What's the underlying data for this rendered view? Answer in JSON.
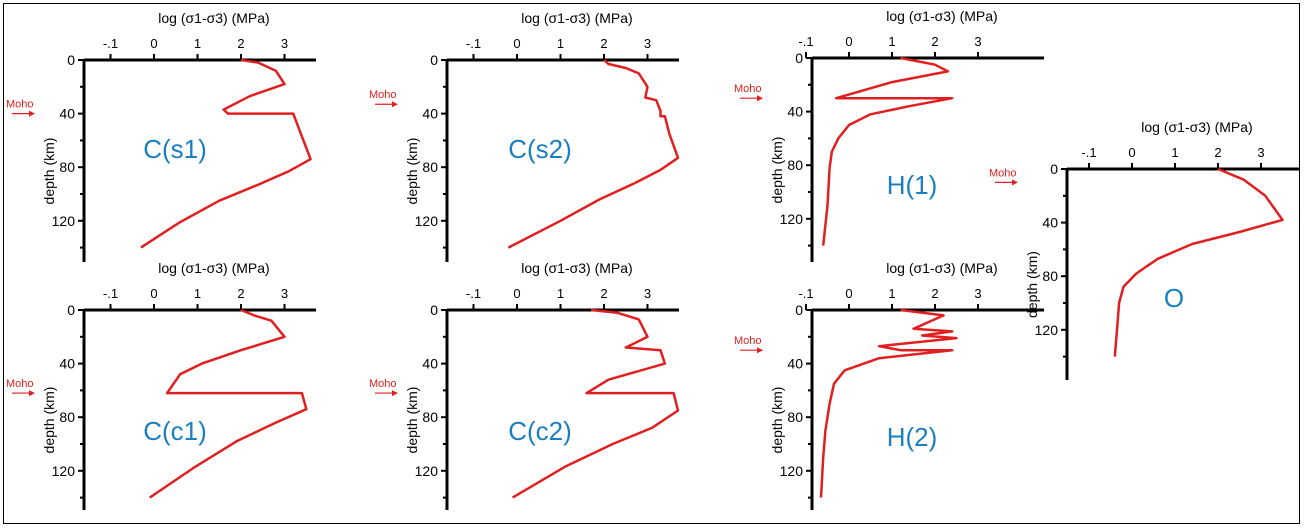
{
  "colors": {
    "curve": "#e02020",
    "moho_text": "#e02020",
    "panel_label": "#1a7fc0",
    "axis": "#000000"
  },
  "chart_data": [
    {
      "type": "line",
      "panel_label": "C(s1)",
      "xlabel": "log (σ1-σ3) (MPa)",
      "ylabel": "depth (km)",
      "moho_label": "Moho",
      "moho_depth": 40,
      "xticks": [
        "-.1",
        "0",
        "1",
        "2",
        "3"
      ],
      "yticks": [
        "0",
        "40",
        "80",
        "120"
      ],
      "ylim": [
        0,
        145
      ],
      "series": [
        {
          "x": [
            2.0,
            2.4,
            2.8,
            3.0,
            2.2,
            1.6,
            1.7,
            3.2,
            3.6,
            3.1,
            2.4,
            1.5,
            0.6,
            -0.3
          ],
          "y": [
            0,
            2,
            8,
            18,
            27,
            37,
            40,
            40,
            74,
            83,
            93,
            105,
            121,
            140
          ]
        }
      ]
    },
    {
      "type": "line",
      "panel_label": "C(s2)",
      "xlabel": "log (σ1-σ3) (MPa)",
      "ylabel": "depth (km)",
      "moho_label": "Moho",
      "moho_depth": 33,
      "xticks": [
        "-.1",
        "0",
        "1",
        "2",
        "3"
      ],
      "yticks": [
        "0",
        "40",
        "80",
        "120"
      ],
      "ylim": [
        0,
        145
      ],
      "series": [
        {
          "x": [
            2.0,
            2.1,
            2.5,
            2.8,
            3.0,
            2.95,
            3.2,
            3.3,
            3.3,
            3.4,
            3.5,
            3.7,
            3.3,
            2.7,
            1.9,
            1.0,
            -0.2
          ],
          "y": [
            0,
            3,
            6,
            10,
            20,
            28,
            30,
            38,
            42,
            42,
            55,
            73,
            82,
            92,
            104,
            120,
            140
          ]
        }
      ]
    },
    {
      "type": "line",
      "panel_label": "H(1)",
      "xlabel": "log (σ1-σ3) (MPa)",
      "ylabel": "depth (km)",
      "moho_label": "Moho",
      "moho_depth": 30,
      "xticks": [
        "-.1",
        "0",
        "1",
        "2",
        "3"
      ],
      "yticks": [
        "0",
        "40",
        "80",
        "120"
      ],
      "ylim": [
        0,
        145
      ],
      "series": [
        {
          "x": [
            1.2,
            2.0,
            2.3,
            1.0,
            -0.3,
            2.4,
            1.4,
            0.5,
            0.0,
            -0.25,
            -0.4,
            -0.45,
            -0.5,
            -0.6
          ],
          "y": [
            0,
            5,
            10,
            18,
            30,
            30,
            36,
            42,
            50,
            60,
            70,
            82,
            110,
            140
          ]
        }
      ]
    },
    {
      "type": "line",
      "panel_label": "O",
      "xlabel": "log (σ1-σ3) (MPa)",
      "ylabel": "depth (km)",
      "moho_label": "Moho",
      "moho_depth": 10,
      "xticks": [
        "-.1",
        "0",
        "1",
        "2",
        "3"
      ],
      "yticks": [
        "0",
        "40",
        "80",
        "120"
      ],
      "ylim": [
        0,
        145
      ],
      "series": [
        {
          "x": [
            2.0,
            2.6,
            3.1,
            3.5,
            2.5,
            1.4,
            0.6,
            0.1,
            -0.2,
            -0.3,
            -0.35,
            -0.4
          ],
          "y": [
            0,
            8,
            20,
            38,
            47,
            56,
            67,
            78,
            88,
            100,
            120,
            140
          ]
        }
      ]
    },
    {
      "type": "line",
      "panel_label": "C(c1)",
      "xlabel": "log (σ1-σ3) (MPa)",
      "ylabel": "depth (km)",
      "moho_label": "Moho",
      "moho_depth": 62,
      "xticks": [
        "-.1",
        "0",
        "1",
        "2",
        "3"
      ],
      "yticks": [
        "0",
        "40",
        "80",
        "120"
      ],
      "ylim": [
        0,
        145
      ],
      "series": [
        {
          "x": [
            2.0,
            2.3,
            2.7,
            3.0,
            2.0,
            1.1,
            0.6,
            0.3,
            3.4,
            3.5,
            2.8,
            1.9,
            0.9,
            -0.1
          ],
          "y": [
            0,
            4,
            8,
            20,
            30,
            40,
            48,
            62,
            62,
            74,
            84,
            98,
            118,
            140
          ]
        }
      ]
    },
    {
      "type": "line",
      "panel_label": "C(c2)",
      "xlabel": "log (σ1-σ3) (MPa)",
      "ylabel": "depth (km)",
      "moho_label": "Moho",
      "moho_depth": 62,
      "xticks": [
        "-.1",
        "0",
        "1",
        "2",
        "3"
      ],
      "yticks": [
        "0",
        "40",
        "80",
        "120"
      ],
      "ylim": [
        0,
        145
      ],
      "series": [
        {
          "x": [
            1.7,
            2.3,
            2.8,
            3.0,
            2.5,
            3.3,
            3.4,
            2.1,
            1.6,
            3.6,
            3.7,
            3.1,
            2.2,
            1.1,
            -0.1
          ],
          "y": [
            0,
            2,
            7,
            20,
            28,
            30,
            40,
            52,
            62,
            62,
            75,
            88,
            100,
            117,
            140
          ]
        }
      ]
    },
    {
      "type": "line",
      "panel_label": "H(2)",
      "xlabel": "log (σ1-σ3) (MPa)",
      "ylabel": "depth (km)",
      "moho_label": "Moho",
      "moho_depth": 30,
      "xticks": [
        "-.1",
        "0",
        "1",
        "2",
        "3"
      ],
      "yticks": [
        "0",
        "40",
        "80",
        "120"
      ],
      "ylim": [
        0,
        145
      ],
      "series": [
        {
          "x": [
            1.2,
            2.2,
            1.5,
            2.4,
            1.7,
            2.5,
            0.7,
            1.2,
            2.4,
            0.7,
            -0.1,
            -0.35,
            -0.45,
            -0.55,
            -0.6,
            -0.65
          ],
          "y": [
            0,
            4,
            14,
            16,
            19,
            21,
            27,
            30,
            30,
            36,
            45,
            55,
            70,
            90,
            110,
            140
          ]
        }
      ]
    }
  ]
}
